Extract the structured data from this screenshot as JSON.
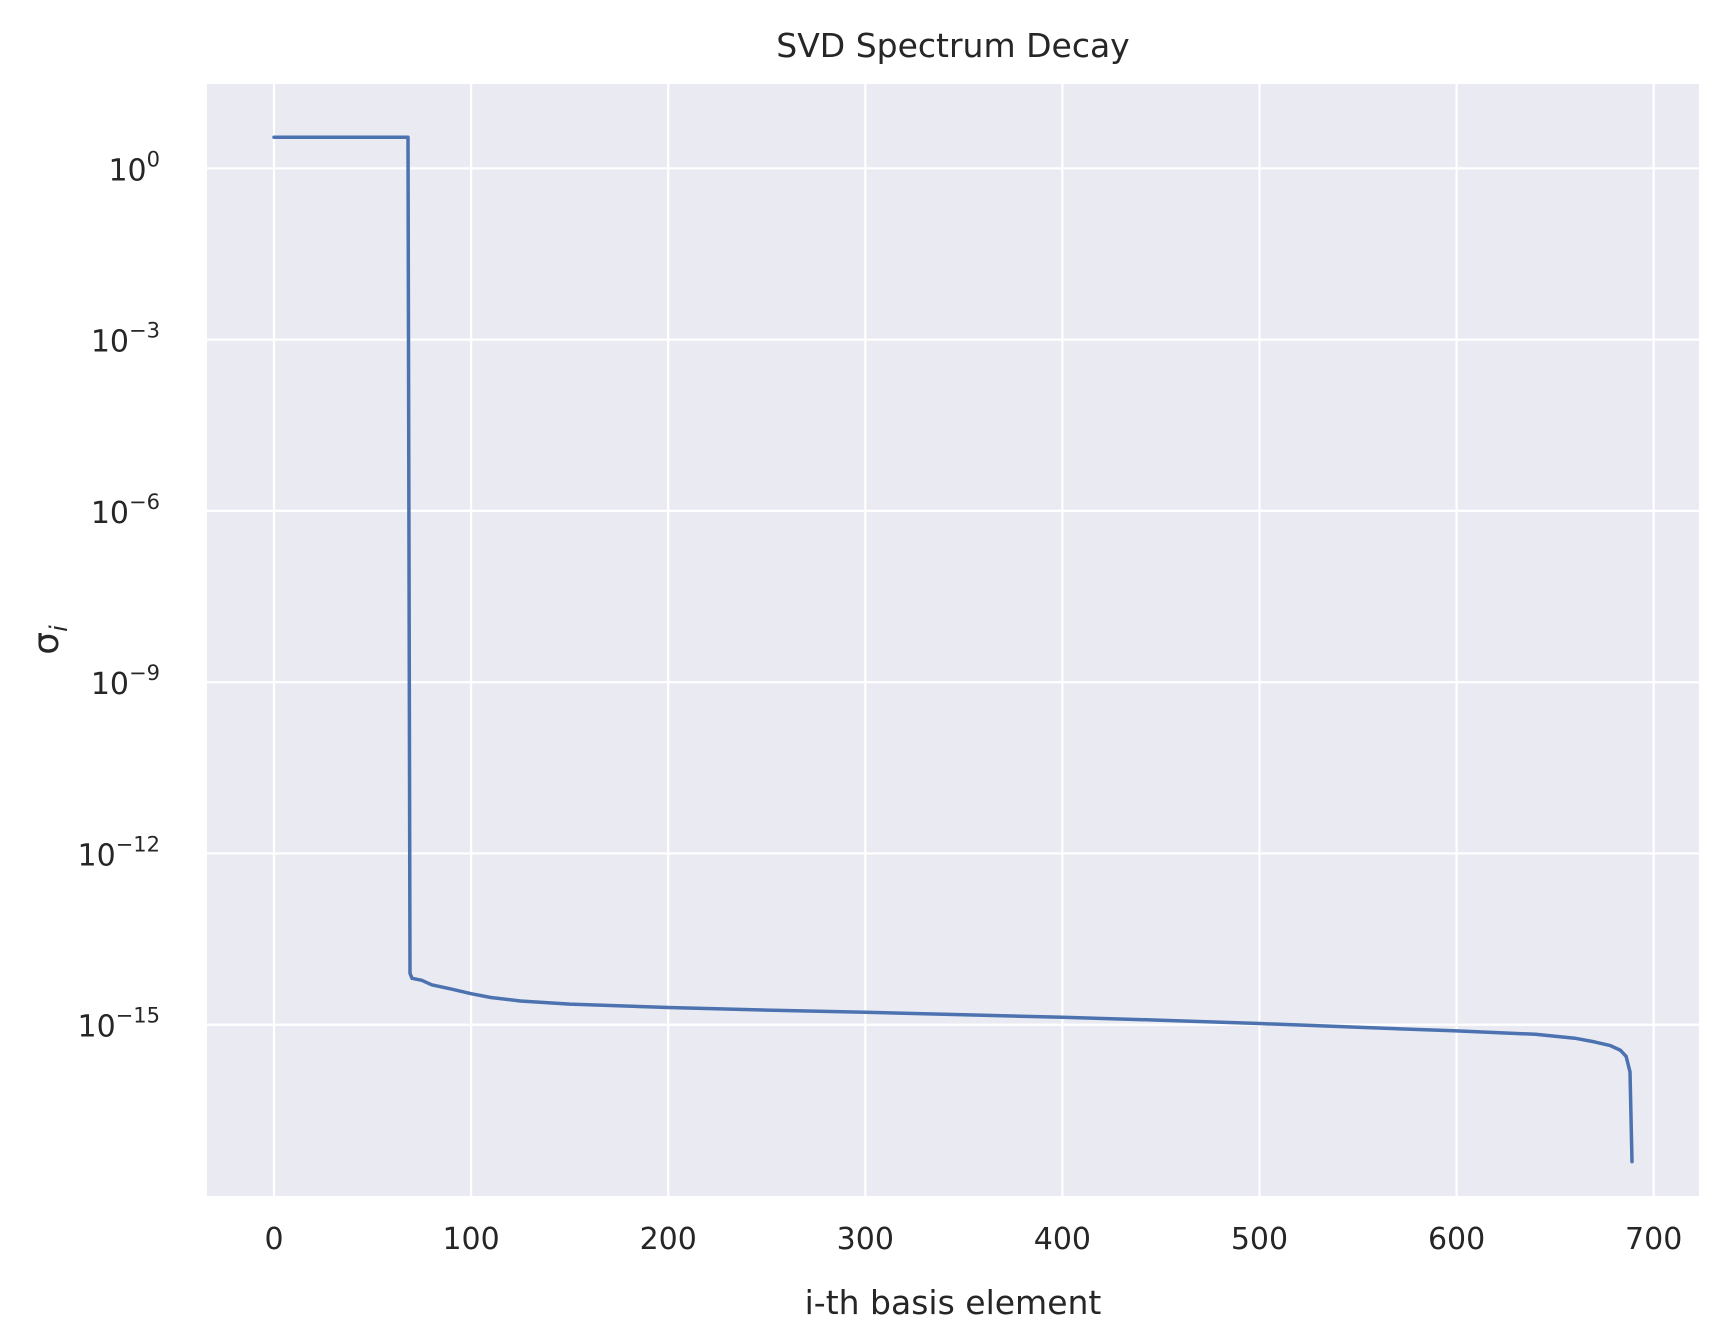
{
  "chart_data": {
    "type": "line",
    "title": "SVD Spectrum Decay",
    "xlabel": "i-th basis element",
    "ylabel": "σ",
    "ylabel_subscript": "i",
    "y_scale": "log",
    "xlim": [
      -34,
      723
    ],
    "ylim": [
      1e-18,
      30
    ],
    "grid": true,
    "x_ticks": [
      0,
      100,
      200,
      300,
      400,
      500,
      600,
      700
    ],
    "y_ticks": [
      {
        "value": 1,
        "base": "10",
        "exponent": "0"
      },
      {
        "value": 0.001,
        "base": "10",
        "exponent": "−3"
      },
      {
        "value": 1e-06,
        "base": "10",
        "exponent": "−6"
      },
      {
        "value": 1e-09,
        "base": "10",
        "exponent": "−9"
      },
      {
        "value": 1e-12,
        "base": "10",
        "exponent": "−12"
      },
      {
        "value": 1e-15,
        "base": "10",
        "exponent": "−15"
      }
    ],
    "series": [
      {
        "color": "#4c72b0",
        "points": [
          [
            0,
            3.5
          ],
          [
            68,
            3.5
          ],
          [
            69,
            8e-15
          ],
          [
            70,
            6.5e-15
          ],
          [
            75,
            6e-15
          ],
          [
            80,
            5e-15
          ],
          [
            90,
            4.2e-15
          ],
          [
            100,
            3.5e-15
          ],
          [
            110,
            3e-15
          ],
          [
            125,
            2.6e-15
          ],
          [
            150,
            2.3e-15
          ],
          [
            200,
            2e-15
          ],
          [
            250,
            1.8e-15
          ],
          [
            300,
            1.65e-15
          ],
          [
            350,
            1.5e-15
          ],
          [
            400,
            1.35e-15
          ],
          [
            450,
            1.2e-15
          ],
          [
            500,
            1.05e-15
          ],
          [
            550,
            9e-16
          ],
          [
            600,
            7.8e-16
          ],
          [
            640,
            6.8e-16
          ],
          [
            660,
            5.8e-16
          ],
          [
            670,
            5e-16
          ],
          [
            678,
            4.3e-16
          ],
          [
            683,
            3.6e-16
          ],
          [
            686,
            2.8e-16
          ],
          [
            688,
            1.5e-16
          ],
          [
            689,
            4e-18
          ]
        ]
      }
    ]
  }
}
